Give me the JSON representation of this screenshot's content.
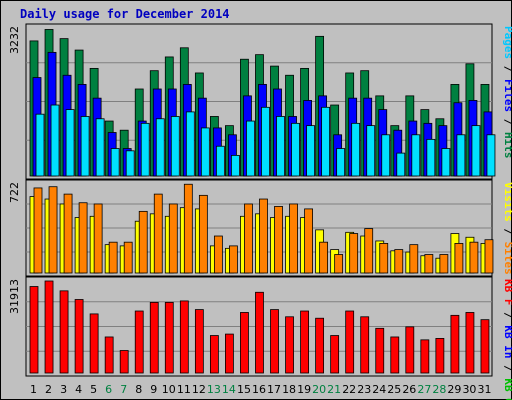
{
  "title": "Daily usage for December 2014",
  "chart_data": [
    {
      "type": "bar",
      "panel": "top",
      "scale_label": "3232",
      "ylim": [
        0,
        3232
      ],
      "categories": [
        "1",
        "2",
        "3",
        "4",
        "5",
        "6",
        "7",
        "8",
        "9",
        "10",
        "11",
        "12",
        "13",
        "14",
        "15",
        "16",
        "17",
        "18",
        "19",
        "20",
        "21",
        "22",
        "23",
        "24",
        "25",
        "26",
        "27",
        "28",
        "29",
        "30",
        "31"
      ],
      "weekend_days": [
        "6",
        "7",
        "13",
        "14",
        "20",
        "21",
        "27",
        "28"
      ],
      "legend": [
        {
          "label": "Pages",
          "color": "#00c8ff"
        },
        {
          "label": " / ",
          "color": "#000000"
        },
        {
          "label": "Files",
          "color": "#0000ff"
        },
        {
          "label": " / ",
          "color": "#000000"
        },
        {
          "label": "Hits",
          "color": "#008040"
        }
      ],
      "series": [
        {
          "name": "Hits",
          "color": "#008040",
          "values": [
            2950,
            3200,
            3000,
            2750,
            2350,
            1200,
            1000,
            1900,
            2300,
            2600,
            2800,
            2250,
            1300,
            1100,
            2550,
            2650,
            2400,
            2200,
            2350,
            3050,
            1550,
            2250,
            2300,
            1750,
            1100,
            1750,
            1450,
            1250,
            2000,
            2450,
            2000
          ]
        },
        {
          "name": "Files",
          "color": "#0000ff",
          "values": [
            2150,
            2700,
            2200,
            2000,
            1700,
            950,
            600,
            1200,
            1900,
            1900,
            2000,
            1700,
            1050,
            900,
            1750,
            2000,
            1900,
            1300,
            1650,
            1750,
            900,
            1700,
            1700,
            1450,
            1000,
            1200,
            1150,
            1100,
            1600,
            1650,
            1400
          ]
        },
        {
          "name": "Pages",
          "color": "#00e0ff",
          "values": [
            1350,
            1550,
            1450,
            1300,
            1250,
            600,
            550,
            1150,
            1250,
            1300,
            1400,
            1050,
            650,
            450,
            1200,
            1500,
            1300,
            1150,
            1100,
            1500,
            600,
            1150,
            1100,
            900,
            500,
            900,
            800,
            600,
            900,
            1100,
            900
          ]
        }
      ]
    },
    {
      "type": "bar",
      "panel": "middle",
      "scale_label": "722",
      "ylim": [
        0,
        722
      ],
      "legend": [
        {
          "label": "Visits",
          "color": "#ffff00"
        },
        {
          "label": " / ",
          "color": "#000000"
        },
        {
          "label": "Sites",
          "color": "#ff8000"
        }
      ],
      "series": [
        {
          "name": "Visits",
          "color": "#ffff00",
          "values": [
            620,
            600,
            560,
            450,
            460,
            230,
            220,
            420,
            480,
            460,
            530,
            520,
            220,
            200,
            460,
            480,
            450,
            460,
            450,
            350,
            190,
            330,
            300,
            260,
            180,
            170,
            140,
            120,
            320,
            290,
            240
          ]
        },
        {
          "name": "Sites",
          "color": "#ff8000",
          "values": [
            690,
            700,
            640,
            570,
            560,
            250,
            250,
            500,
            640,
            560,
            720,
            630,
            300,
            220,
            560,
            600,
            540,
            560,
            520,
            250,
            150,
            320,
            360,
            240,
            190,
            230,
            150,
            150,
            240,
            250,
            270
          ]
        }
      ]
    },
    {
      "type": "bar",
      "panel": "bottom",
      "scale_label": "31913",
      "ylim": [
        0,
        31913
      ],
      "legend": [
        {
          "label": "KB F",
          "color": "#ff0000"
        },
        {
          "label": " / ",
          "color": "#000000"
        },
        {
          "label": "KB In",
          "color": "#0000ff"
        },
        {
          "label": " / ",
          "color": "#000000"
        },
        {
          "label": "KB Out",
          "color": "#00c000"
        }
      ],
      "series": [
        {
          "name": "KB F",
          "color": "#ff0000",
          "values": [
            30000,
            31913,
            28500,
            25500,
            20500,
            12500,
            7800,
            21500,
            24500,
            24500,
            25000,
            22000,
            13000,
            13500,
            21000,
            28000,
            22000,
            19500,
            21500,
            19000,
            13000,
            21500,
            19500,
            15500,
            12500,
            16000,
            11500,
            12000,
            20000,
            21000,
            18500
          ]
        }
      ]
    }
  ]
}
